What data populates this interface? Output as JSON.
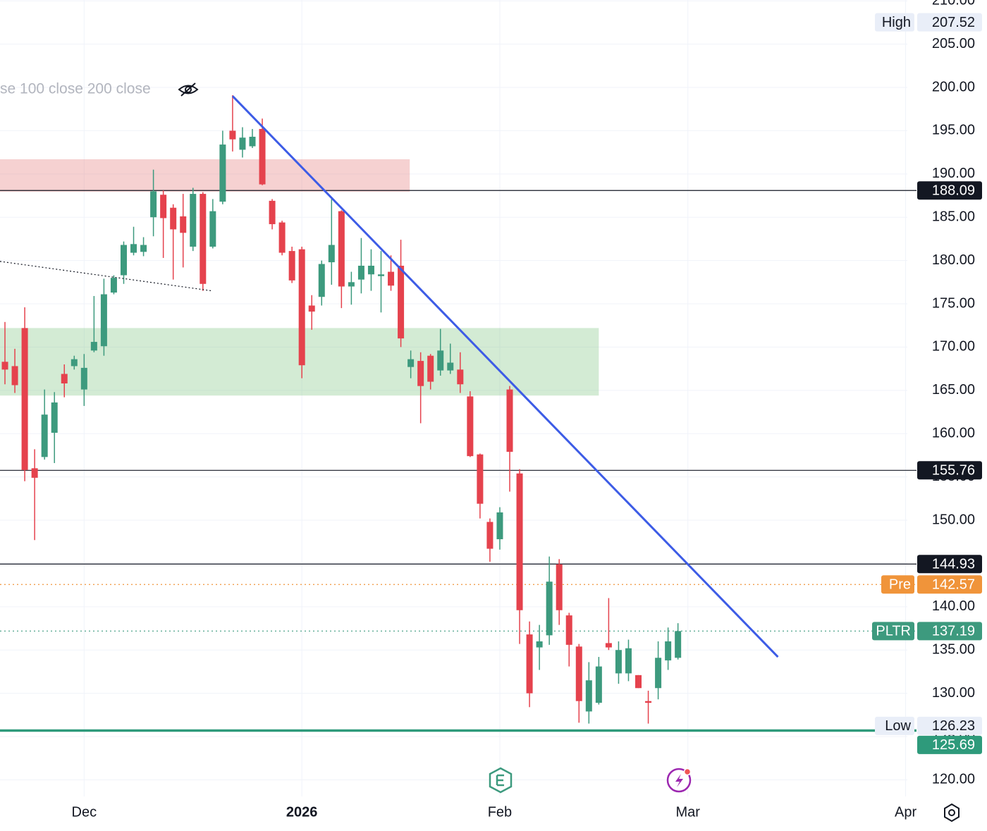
{
  "chart_data": {
    "type": "candlestick",
    "legend_text": "se 100 close 200 close",
    "up_color": "#3d9a7e",
    "down_color": "#e5424d",
    "grid": true,
    "xlim": [
      -0.5,
      92.1
    ],
    "xticks": [
      {
        "value": 8,
        "label": "Dec"
      },
      {
        "value": 30,
        "label": "2026"
      },
      {
        "value": 50,
        "label": "Feb"
      },
      {
        "value": 69,
        "label": "Mar"
      },
      {
        "value": 91,
        "label": "Apr"
      }
    ],
    "ylim": [
      118.08,
      210.1
    ],
    "yticks": [
      {
        "value": 120,
        "label": "120.00"
      },
      {
        "value": 125,
        "label": "125.00"
      },
      {
        "value": 130,
        "label": "130.00"
      },
      {
        "value": 135,
        "label": "135.00"
      },
      {
        "value": 140,
        "label": "140.00"
      },
      {
        "value": 145,
        "label": "145.00"
      },
      {
        "value": 150,
        "label": "150.00"
      },
      {
        "value": 155,
        "label": "155.00"
      },
      {
        "value": 160,
        "label": "160.00"
      },
      {
        "value": 165,
        "label": "165.00"
      },
      {
        "value": 170,
        "label": "170.00"
      },
      {
        "value": 175,
        "label": "175.00"
      },
      {
        "value": 180,
        "label": "180.00"
      },
      {
        "value": 185,
        "label": "185.00"
      },
      {
        "value": 190,
        "label": "190.00"
      },
      {
        "value": 195,
        "label": "195.00"
      },
      {
        "value": 200,
        "label": "200.00"
      },
      {
        "value": 205,
        "label": "205.00"
      },
      {
        "value": 210,
        "label": "210.00"
      }
    ],
    "open": [
      168.3,
      167.8,
      172.2,
      156.0,
      157.3,
      160.1,
      166.9,
      167.8,
      165.1,
      169.6,
      170.1,
      176.3,
      178.3,
      180.9,
      181.0,
      185.0,
      187.6,
      186.1,
      185.1,
      181.6,
      187.7,
      181.6,
      186.8,
      195.0,
      192.8,
      193.2,
      195.2,
      186.9,
      184.4,
      181.1,
      181.3,
      174.8,
      175.8,
      179.8,
      185.7,
      177.0,
      177.8,
      178.4,
      178.2,
      178.7,
      179.4,
      167.7,
      168.4,
      169.0,
      167.3,
      167.3,
      167.4,
      164.3,
      157.6,
      149.8,
      147.8,
      165.1,
      155.4,
      136.8,
      135.3,
      136.7,
      144.9,
      139.0,
      135.4,
      127.9,
      128.9,
      135.8,
      132.3,
      132.3,
      132.1,
      129.1,
      130.6,
      133.8,
      134.1
    ],
    "high": [
      172.9,
      169.8,
      174.6,
      158.2,
      165.1,
      164.8,
      168.0,
      169.0,
      169.2,
      175.9,
      177.9,
      178.3,
      182.2,
      183.9,
      182.7,
      190.5,
      188.1,
      186.5,
      187.7,
      188.4,
      187.9,
      187.1,
      195.0,
      199.1,
      195.4,
      195.2,
      196.4,
      187.1,
      184.6,
      181.6,
      181.6,
      176.0,
      180.0,
      187.1,
      185.8,
      178.7,
      182.6,
      181.3,
      181.1,
      180.6,
      182.4,
      169.6,
      169.4,
      169.2,
      172.1,
      170.4,
      169.4,
      164.9,
      157.7,
      150.2,
      151.5,
      165.5,
      155.9,
      138.3,
      137.9,
      145.8,
      145.5,
      139.3,
      135.7,
      133.6,
      134.2,
      141.0,
      136.0,
      136.2,
      132.1,
      130.3,
      136.0,
      137.6,
      138.1
    ],
    "low": [
      165.7,
      164.7,
      154.5,
      147.7,
      157.0,
      156.6,
      164.2,
      167.4,
      163.2,
      169.4,
      169.0,
      176.1,
      177.3,
      180.6,
      180.5,
      182.8,
      180.3,
      177.8,
      179.2,
      181.1,
      176.5,
      181.4,
      186.5,
      192.6,
      191.9,
      193.0,
      188.7,
      183.6,
      180.6,
      177.4,
      166.4,
      172.0,
      174.8,
      177.2,
      174.5,
      174.9,
      176.2,
      176.5,
      174.0,
      176.5,
      170.0,
      166.4,
      161.2,
      165.1,
      166.7,
      166.9,
      164.7,
      157.3,
      150.2,
      145.2,
      146.6,
      153.3,
      135.7,
      128.4,
      132.7,
      135.6,
      137.9,
      133.1,
      126.6,
      126.5,
      128.7,
      135.0,
      131.1,
      131.4,
      130.6,
      126.5,
      129.3,
      132.7,
      133.9
    ],
    "close": [
      167.4,
      165.6,
      155.8,
      154.9,
      162.2,
      163.6,
      165.8,
      168.6,
      167.6,
      170.6,
      176.1,
      178.0,
      181.8,
      181.9,
      181.8,
      188.0,
      184.9,
      183.6,
      183.2,
      187.7,
      177.3,
      185.7,
      193.4,
      194.0,
      194.2,
      194.3,
      188.8,
      184.2,
      180.9,
      177.7,
      167.9,
      174.1,
      179.6,
      181.8,
      177.0,
      177.5,
      179.4,
      179.4,
      178.4,
      177.1,
      171.0,
      168.6,
      165.5,
      166.0,
      169.6,
      168.2,
      165.7,
      157.4,
      151.9,
      146.7,
      150.9,
      157.9,
      139.6,
      130.0,
      136.0,
      142.9,
      139.6,
      135.6,
      129.1,
      131.5,
      133.1,
      135.3,
      135.0,
      135.2,
      130.6,
      128.9,
      134.1,
      136.0,
      137.19
    ],
    "zones": [
      {
        "x": [
          -0.5,
          40.9
        ],
        "y": [
          187.95,
          191.7
        ],
        "color": "rgba(229,115,115,0.33)"
      },
      {
        "x": [
          -0.5,
          60.0
        ],
        "y": [
          164.4,
          172.2
        ],
        "color": "rgba(129,199,132,0.35)"
      }
    ],
    "trendlines": [
      {
        "x": [
          23,
          78.1
        ],
        "y": [
          199.0,
          134.2
        ],
        "color": "#3d5ce6",
        "width": 3,
        "dashed": false
      },
      {
        "x": [
          -0.5,
          20.9
        ],
        "y": [
          179.9,
          176.5
        ],
        "color": "#131722",
        "width": 1.2,
        "dashed": true
      }
    ],
    "hlines": [
      {
        "value": 188.09,
        "color": "#131722",
        "width": 1.2,
        "dashed": false
      },
      {
        "value": 155.76,
        "color": "#131722",
        "width": 1.2,
        "dashed": false
      },
      {
        "value": 144.93,
        "color": "#131722",
        "width": 1.2,
        "dashed": false
      },
      {
        "name": "Pre",
        "value": 142.57,
        "color": "#f0943a",
        "width": 1.2,
        "dashed": true
      },
      {
        "name": "PLTR",
        "value": 137.19,
        "color": "#3d9a7e",
        "width": 1.2,
        "dashed": true
      },
      {
        "value": 125.69,
        "color": "#2e9a7b",
        "width": 3.5,
        "dashed": false
      }
    ],
    "markers": [
      {
        "name": "High",
        "value": 207.52
      },
      {
        "name": "Low",
        "value": 126.23
      }
    ]
  }
}
